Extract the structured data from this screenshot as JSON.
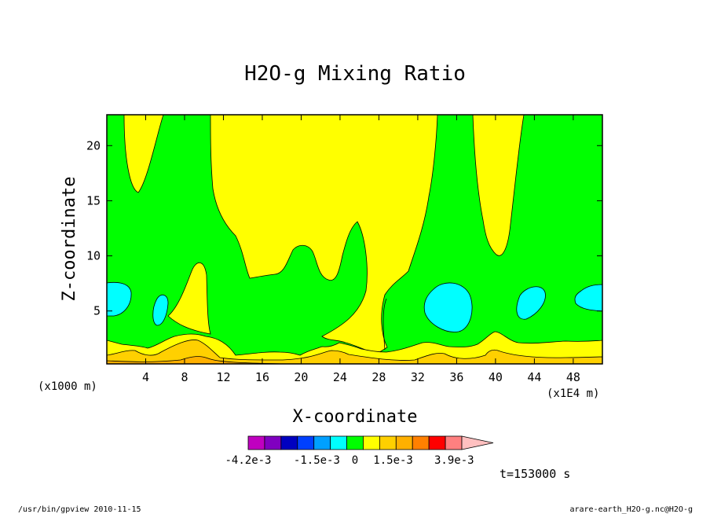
{
  "chart_data": {
    "type": "heatmap",
    "title": "H2O-g Mixing Ratio",
    "xlabel": "X-coordinate",
    "ylabel": "Z-coordinate",
    "x_scale_note": "(x1E4 m)",
    "y_scale_note": "(x1000 m)",
    "xlim": [
      0,
      51
    ],
    "ylim": [
      0.2,
      22.8
    ],
    "x_ticks": [
      4,
      8,
      12,
      16,
      20,
      24,
      28,
      32,
      36,
      40,
      44,
      48
    ],
    "y_ticks": [
      5,
      10,
      15,
      20
    ],
    "time_label": "t=153000 s",
    "levels": [
      -0.0042,
      -0.0036,
      -0.003,
      -0.0024,
      -0.0018,
      -0.0012,
      -0.0006,
      0,
      0.0006,
      0.0012,
      0.0018,
      0.0024,
      0.003,
      0.0036,
      0.0042
    ],
    "colorbar_labels": [
      "-4.2e-3",
      "-1.5e-3",
      "0",
      "1.5e-3",
      "3.9e-3"
    ],
    "colorbar_colors": [
      "#c000c0",
      "#8000c0",
      "#0000c0",
      "#0040ff",
      "#00a0ff",
      "#00ffff",
      "#00ff00",
      "#ffff00",
      "#ffd000",
      "#ffb000",
      "#ff8000",
      "#ff0000",
      "#ff8080",
      "#ffc0c0"
    ],
    "bands": [
      {
        "level": 0,
        "color": "#00ff00"
      },
      {
        "level": 0.0006,
        "color": "#ffff00"
      },
      {
        "level": 0.0012,
        "color": "#ffd000"
      },
      {
        "level": 0.0018,
        "color": "#ffb000"
      },
      {
        "level": -0.0006,
        "color": "#00ffff"
      }
    ]
  },
  "footer": {
    "left": "/usr/bin/gpview  2010-11-15",
    "right": "arare-earth_H2O-g.nc@H2O-g"
  }
}
